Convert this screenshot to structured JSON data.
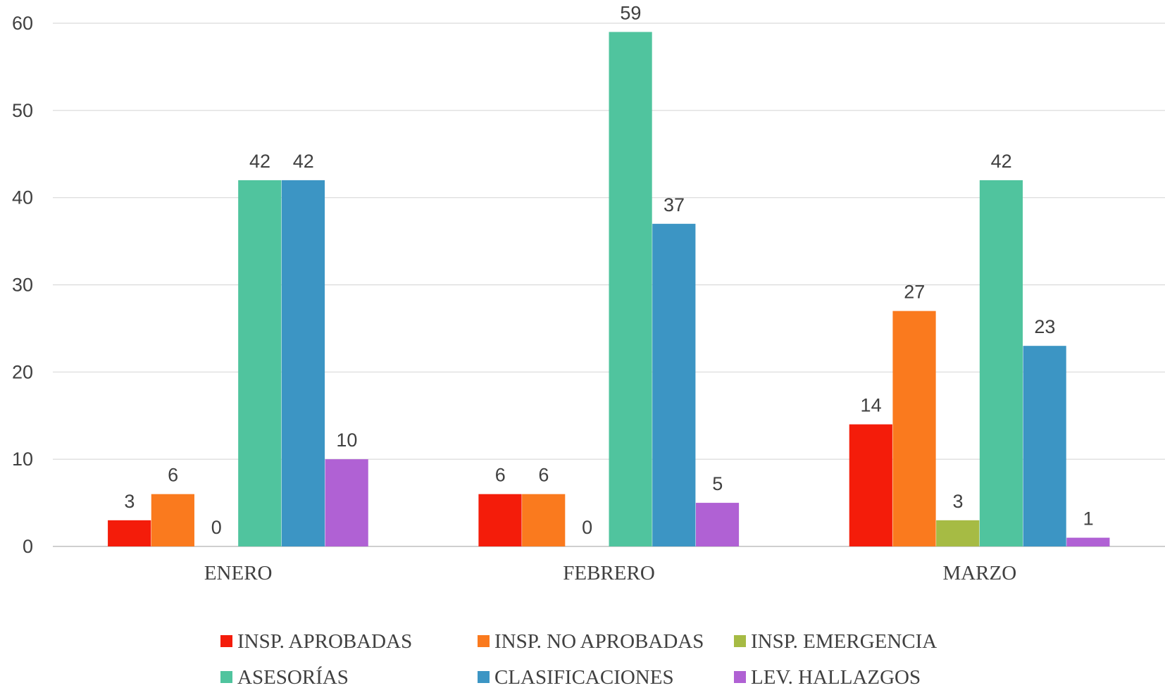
{
  "chart_data": {
    "type": "bar",
    "categories": [
      "ENERO",
      "FEBRERO",
      "MARZO"
    ],
    "series": [
      {
        "name": "INSP. APROBADAS",
        "color": "#F41C0A",
        "values": [
          3,
          6,
          14
        ]
      },
      {
        "name": "INSP. NO APROBADAS",
        "color": "#FA7A1E",
        "values": [
          6,
          6,
          27
        ]
      },
      {
        "name": "INSP. EMERGENCIA",
        "color": "#A6BB44",
        "values": [
          0,
          0,
          3
        ]
      },
      {
        "name": "ASESORÍAS",
        "color": "#50C49E",
        "values": [
          42,
          59,
          42
        ]
      },
      {
        "name": "CLASIFICACIONES",
        "color": "#3C95C4",
        "values": [
          42,
          37,
          23
        ]
      },
      {
        "name": "LEV. HALLAZGOS",
        "color": "#B061D4",
        "values": [
          10,
          5,
          1
        ]
      }
    ],
    "y_ticks": [
      "0",
      "10",
      "20",
      "30",
      "40",
      "50",
      "60"
    ],
    "ylim": [
      0,
      60
    ],
    "grid": true,
    "legend_position": "bottom",
    "title": "",
    "xlabel": "",
    "ylabel": ""
  }
}
